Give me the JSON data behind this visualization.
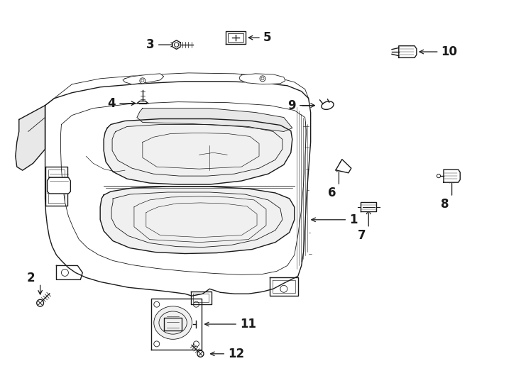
{
  "bg_color": "#ffffff",
  "line_color": "#1a1a1a",
  "lw": 1.0,
  "tlw": 0.6,
  "fig_w": 7.34,
  "fig_h": 5.4,
  "dpi": 100
}
